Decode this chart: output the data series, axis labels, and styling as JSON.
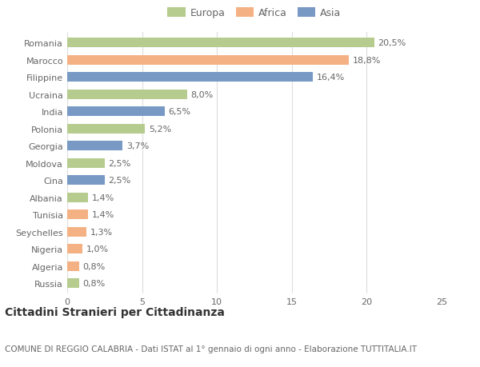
{
  "countries": [
    "Romania",
    "Marocco",
    "Filippine",
    "Ucraina",
    "India",
    "Polonia",
    "Georgia",
    "Moldova",
    "Cina",
    "Albania",
    "Tunisia",
    "Seychelles",
    "Nigeria",
    "Algeria",
    "Russia"
  ],
  "values": [
    20.5,
    18.8,
    16.4,
    8.0,
    6.5,
    5.2,
    3.7,
    2.5,
    2.5,
    1.4,
    1.4,
    1.3,
    1.0,
    0.8,
    0.8
  ],
  "labels": [
    "20,5%",
    "18,8%",
    "16,4%",
    "8,0%",
    "6,5%",
    "5,2%",
    "3,7%",
    "2,5%",
    "2,5%",
    "1,4%",
    "1,4%",
    "1,3%",
    "1,0%",
    "0,8%",
    "0,8%"
  ],
  "continents": [
    "Europa",
    "Africa",
    "Asia",
    "Europa",
    "Asia",
    "Europa",
    "Asia",
    "Europa",
    "Asia",
    "Europa",
    "Africa",
    "Africa",
    "Africa",
    "Africa",
    "Europa"
  ],
  "colors": {
    "Europa": "#b5cc8e",
    "Africa": "#f4b183",
    "Asia": "#7899c4"
  },
  "legend_labels": [
    "Europa",
    "Africa",
    "Asia"
  ],
  "xlim": [
    0,
    25
  ],
  "xticks": [
    0,
    5,
    10,
    15,
    20,
    25
  ],
  "title": "Cittadini Stranieri per Cittadinanza",
  "subtitle": "COMUNE DI REGGIO CALABRIA - Dati ISTAT al 1° gennaio di ogni anno - Elaborazione TUTTITALIA.IT",
  "background_color": "#ffffff",
  "grid_color": "#dddddd",
  "bar_height": 0.55,
  "title_fontsize": 10,
  "subtitle_fontsize": 7.5,
  "label_fontsize": 8,
  "tick_fontsize": 8,
  "legend_fontsize": 9
}
